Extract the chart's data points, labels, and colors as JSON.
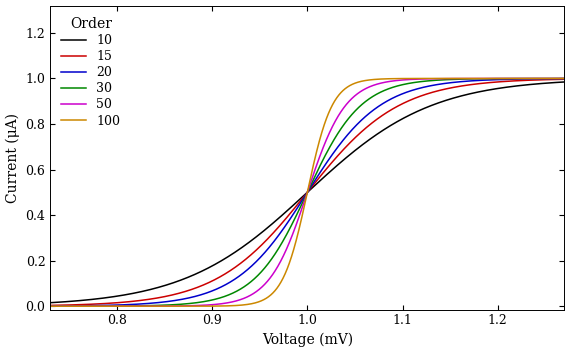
{
  "title": "",
  "xlabel": "Voltage (mV)",
  "ylabel": "Current (μA)",
  "xlim": [
    0.73,
    1.27
  ],
  "ylim": [
    -0.015,
    1.32
  ],
  "xticks": [
    0.8,
    0.9,
    1.0,
    1.1,
    1.2
  ],
  "yticks": [
    0.0,
    0.2,
    0.4,
    0.6,
    0.8,
    1.0,
    1.2
  ],
  "series": [
    {
      "order": 10,
      "color": "#000000",
      "label": "10",
      "scale": 0.065
    },
    {
      "order": 15,
      "color": "#cc0000",
      "label": "15",
      "scale": 0.048
    },
    {
      "order": 20,
      "color": "#0000cc",
      "label": "20",
      "scale": 0.038
    },
    {
      "order": 30,
      "color": "#008800",
      "label": "30",
      "scale": 0.028
    },
    {
      "order": 50,
      "color": "#cc00cc",
      "label": "50",
      "scale": 0.02
    },
    {
      "order": 100,
      "color": "#cc8800",
      "label": "100",
      "scale": 0.013
    }
  ],
  "legend_title": "Order",
  "v0": 1.0,
  "i_max": 1.27,
  "i_cross": 0.5,
  "background_color": "#ffffff",
  "linewidth": 1.1,
  "font_family": "DejaVu Serif"
}
